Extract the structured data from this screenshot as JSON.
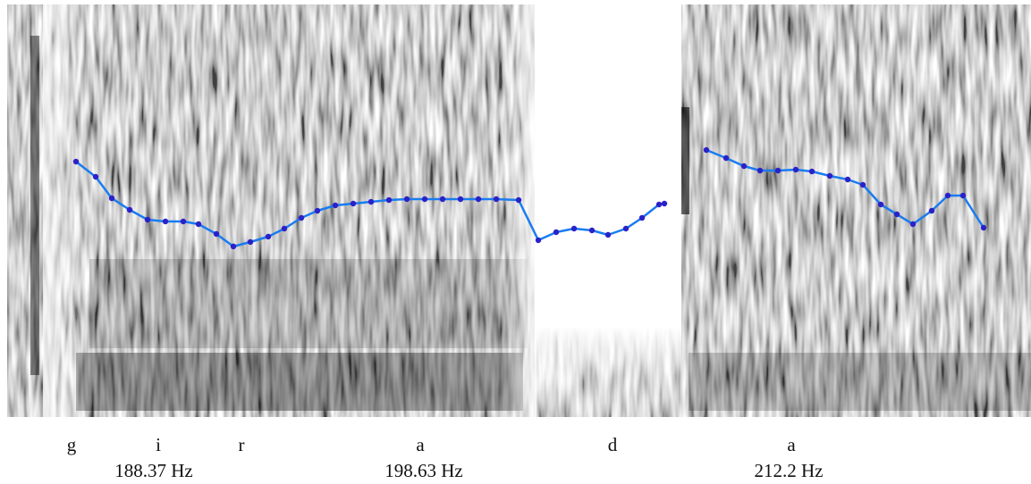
{
  "segments": [
    "g",
    "i",
    "r",
    "a",
    "d",
    "a"
  ],
  "pitch_labels": [
    "188.37 Hz",
    "198.63 Hz",
    "212.2 Hz"
  ]
}
